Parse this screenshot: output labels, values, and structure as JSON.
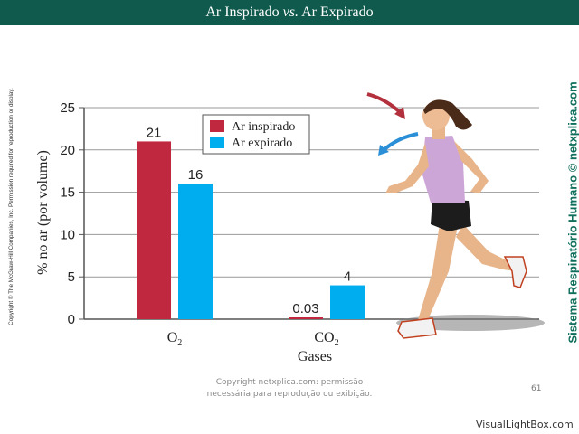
{
  "header": {
    "title_before": "Ar Inspirado ",
    "title_vs": "vs.",
    "title_after": " Ar Expirado"
  },
  "side_copyright": "Copyright © The McGraw-Hill Companies, Inc. Permission required for reproduction or display.",
  "side_credit": "Sistema Respiratório Humano © netxplica.com",
  "footer": {
    "line1": "Copyright netxplica.com: permissão",
    "line2": "necessária para reprodução ou exibição.",
    "page_number": "61",
    "watermark": "VisualLightBox.com"
  },
  "colors": {
    "header": "#0f5a4c",
    "inspirado": "#c0283f",
    "expirado": "#00aeef",
    "credit": "#0f6f5c"
  },
  "illustration": {
    "subject": "running-woman",
    "arrows": [
      "red-inhale-arrow",
      "blue-exhale-arrow"
    ]
  },
  "chart_data": {
    "type": "bar",
    "categories": [
      {
        "base": "O",
        "sub": "2"
      },
      {
        "base": "CO",
        "sub": "2"
      }
    ],
    "series": [
      {
        "name": "Ar inspirado",
        "color": "#c0283f",
        "values": [
          21,
          0.03
        ],
        "labels": [
          "21",
          "0.03"
        ]
      },
      {
        "name": "Ar expirado",
        "color": "#00aeef",
        "values": [
          16,
          4
        ],
        "labels": [
          "16",
          "4"
        ]
      }
    ],
    "ylabel": "% no ar (por volume)",
    "xlabel": "Gases",
    "ylim": [
      0,
      25
    ],
    "yticks": [
      0,
      5,
      10,
      15,
      20,
      25
    ],
    "grid": "horizontal",
    "legend": "top-center"
  }
}
